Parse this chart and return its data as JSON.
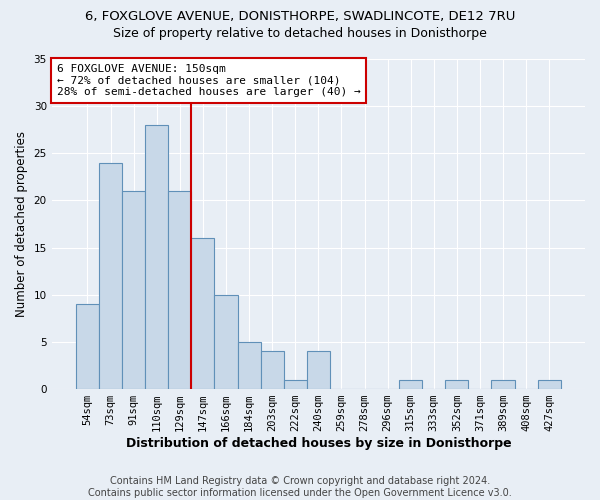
{
  "title1": "6, FOXGLOVE AVENUE, DONISTHORPE, SWADLINCOTE, DE12 7RU",
  "title2": "Size of property relative to detached houses in Donisthorpe",
  "xlabel": "Distribution of detached houses by size in Donisthorpe",
  "ylabel": "Number of detached properties",
  "categories": [
    "54sqm",
    "73sqm",
    "91sqm",
    "110sqm",
    "129sqm",
    "147sqm",
    "166sqm",
    "184sqm",
    "203sqm",
    "222sqm",
    "240sqm",
    "259sqm",
    "278sqm",
    "296sqm",
    "315sqm",
    "333sqm",
    "352sqm",
    "371sqm",
    "389sqm",
    "408sqm",
    "427sqm"
  ],
  "values": [
    9,
    24,
    21,
    28,
    21,
    16,
    10,
    5,
    4,
    1,
    4,
    0,
    0,
    0,
    1,
    0,
    1,
    0,
    1,
    0,
    1
  ],
  "bar_color": "#c8d8e8",
  "bar_edge_color": "#6090b8",
  "red_line_x": 4.5,
  "annotation_line1": "6 FOXGLOVE AVENUE: 150sqm",
  "annotation_line2": "← 72% of detached houses are smaller (104)",
  "annotation_line3": "28% of semi-detached houses are larger (40) →",
  "annotation_box_color": "white",
  "annotation_box_edge_color": "#cc0000",
  "red_line_color": "#cc0000",
  "ylim": [
    0,
    35
  ],
  "yticks": [
    0,
    5,
    10,
    15,
    20,
    25,
    30,
    35
  ],
  "background_color": "#e8eef5",
  "title1_fontsize": 9.5,
  "title2_fontsize": 9,
  "xlabel_fontsize": 9,
  "ylabel_fontsize": 8.5,
  "tick_fontsize": 7.5,
  "annotation_fontsize": 8,
  "footer_fontsize": 7,
  "footer_text": "Contains HM Land Registry data © Crown copyright and database right 2024.\nContains public sector information licensed under the Open Government Licence v3.0."
}
